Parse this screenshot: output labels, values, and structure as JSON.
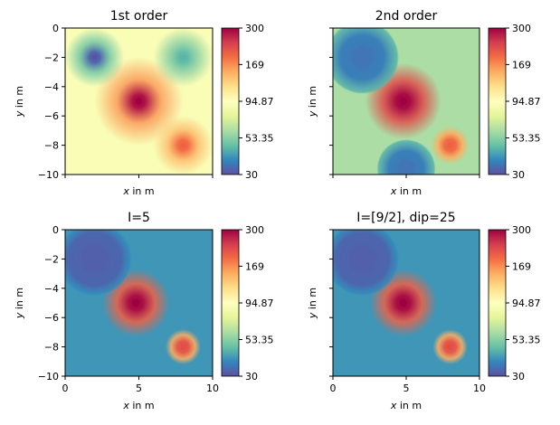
{
  "figure": {
    "colormap": "Spectral_r",
    "colormap_stops": [
      "#5e4fa2",
      "#3288bd",
      "#66c2a5",
      "#abdda4",
      "#e6f598",
      "#ffffbf",
      "#fee08b",
      "#fdae61",
      "#f46d43",
      "#d53e4f",
      "#9e0142"
    ]
  },
  "chart_data": [
    {
      "type": "heatmap",
      "title": "1st order",
      "xlabel": "x in m",
      "ylabel": "y in m",
      "xlim": [
        0,
        10
      ],
      "ylim": [
        -10,
        0
      ],
      "xticks": [
        0,
        5,
        10
      ],
      "xtick_labels_visible": false,
      "yticks": [
        "0",
        "−2",
        "−4",
        "−6",
        "−8",
        "−10"
      ],
      "ytick_labels_visible": true,
      "background_value": 90,
      "field": [
        {
          "x": 5,
          "y": -5,
          "value": 300,
          "radius": 0.45,
          "halo_value": 160,
          "halo_radius": 3.0
        },
        {
          "x": 8,
          "y": -8,
          "value": 200,
          "radius": 0.35,
          "halo_value": 140,
          "halo_radius": 2.0
        },
        {
          "x": 2,
          "y": -2,
          "value": 30,
          "radius": 0.35,
          "halo_value": 50,
          "halo_radius": 2.0
        },
        {
          "x": 8,
          "y": -2,
          "value": 45,
          "radius": 0.35,
          "halo_value": 55,
          "halo_radius": 2.0
        }
      ],
      "colorbar": {
        "ticks": [
          "300",
          "169",
          "94.87",
          "53.35",
          "30"
        ],
        "log_scale": true,
        "range": [
          30,
          300
        ]
      }
    },
    {
      "type": "heatmap",
      "title": "2nd order",
      "xlabel": "x in m",
      "ylabel": "y in m",
      "xlim": [
        0,
        10
      ],
      "ylim": [
        -10,
        0
      ],
      "xticks": [
        0,
        5,
        10
      ],
      "xtick_labels_visible": false,
      "yticks": [
        "0",
        "−2",
        "−4",
        "−6",
        "−8",
        "−10"
      ],
      "ytick_labels_visible": false,
      "background_value": 60,
      "field": [
        {
          "x": 4.8,
          "y": -5,
          "value": 300,
          "radius": 0.5,
          "halo_value": 220,
          "halo_radius": 2.6
        },
        {
          "x": 8,
          "y": -8,
          "value": 200,
          "radius": 0.4,
          "halo_value": 150,
          "halo_radius": 1.3
        },
        {
          "x": 2,
          "y": -2,
          "value": 35,
          "radius": 1.5,
          "halo_value": 45,
          "halo_radius": 2.5
        },
        {
          "x": 5,
          "y": -9.6,
          "value": 35,
          "radius": 1.2,
          "halo_value": 45,
          "halo_radius": 2.0
        }
      ],
      "colorbar": {
        "ticks": [
          "300",
          "169",
          "94.87",
          "53.35",
          "30"
        ],
        "log_scale": true,
        "range": [
          30,
          300
        ]
      }
    },
    {
      "type": "heatmap",
      "title": "I=5",
      "xlabel": "x in m",
      "ylabel": "y in m",
      "xlim": [
        0,
        10
      ],
      "ylim": [
        -10,
        0
      ],
      "xticks": [
        0,
        5,
        10
      ],
      "xtick_labels_visible": true,
      "xtick_labels": [
        "0",
        "5",
        "10"
      ],
      "yticks": [
        "0",
        "−2",
        "−4",
        "−6",
        "−8",
        "−10"
      ],
      "ytick_labels_visible": true,
      "background_value": 40,
      "field": [
        {
          "x": 4.8,
          "y": -5,
          "value": 300,
          "radius": 0.5,
          "halo_value": 200,
          "halo_radius": 2.3
        },
        {
          "x": 8,
          "y": -8,
          "value": 220,
          "radius": 0.4,
          "halo_value": 150,
          "halo_radius": 1.2
        },
        {
          "x": 2,
          "y": -2,
          "value": 32,
          "radius": 1.8,
          "halo_value": 38,
          "halo_radius": 2.5
        }
      ],
      "colorbar": {
        "ticks": [
          "300",
          "169",
          "94.87",
          "53.35",
          "30"
        ],
        "log_scale": true,
        "range": [
          30,
          300
        ]
      }
    },
    {
      "type": "heatmap",
      "title": "I=[9/2], dip=25",
      "xlabel": "x in m",
      "ylabel": "y in m",
      "xlim": [
        0,
        10
      ],
      "ylim": [
        -10,
        0
      ],
      "xticks": [
        0,
        5,
        10
      ],
      "xtick_labels_visible": true,
      "xtick_labels": [
        "0",
        "5",
        "10"
      ],
      "yticks": [
        "0",
        "−2",
        "−4",
        "−6",
        "−8",
        "−10"
      ],
      "ytick_labels_visible": false,
      "background_value": 40,
      "field": [
        {
          "x": 4.8,
          "y": -5,
          "value": 300,
          "radius": 0.5,
          "halo_value": 200,
          "halo_radius": 2.3
        },
        {
          "x": 8,
          "y": -8,
          "value": 220,
          "radius": 0.4,
          "halo_value": 150,
          "halo_radius": 1.2
        },
        {
          "x": 2,
          "y": -2,
          "value": 32,
          "radius": 1.8,
          "halo_value": 38,
          "halo_radius": 2.5
        }
      ],
      "colorbar": {
        "ticks": [
          "300",
          "169",
          "94.87",
          "53.35",
          "30"
        ],
        "log_scale": true,
        "range": [
          30,
          300
        ]
      }
    }
  ]
}
